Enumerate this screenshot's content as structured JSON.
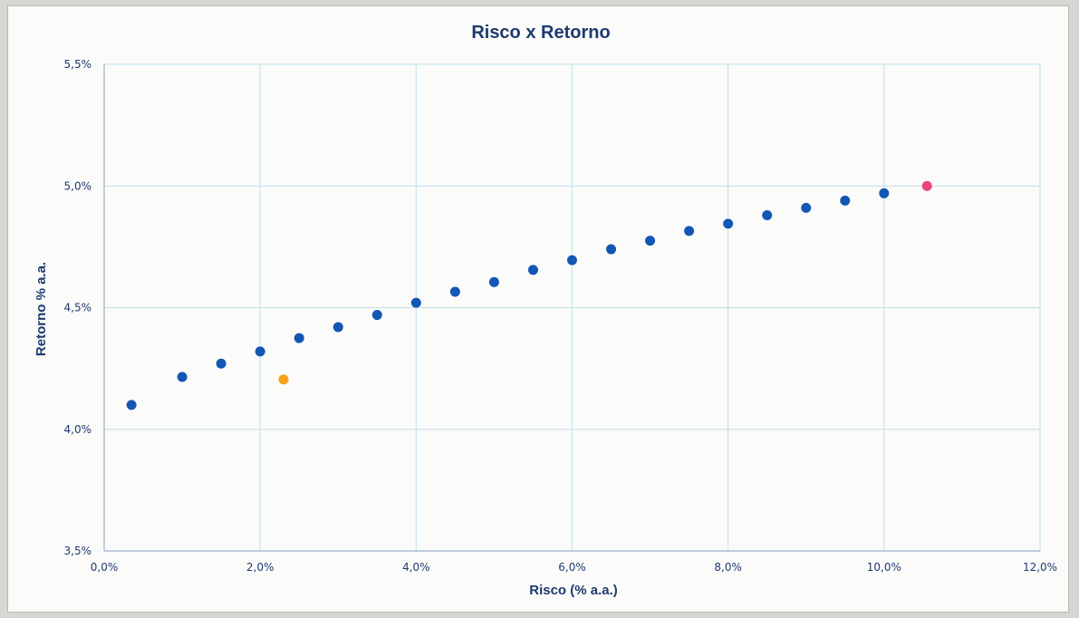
{
  "chart_data": {
    "type": "scatter",
    "title": "Risco x Retorno",
    "xlabel": "Risco (% a.a.)",
    "ylabel": "Retorno % a.a.",
    "xlim": [
      0,
      12
    ],
    "ylim": [
      3.5,
      5.5
    ],
    "x_ticks": [
      "0,0%",
      "2,0%",
      "4,0%",
      "6,0%",
      "8,0%",
      "10,0%",
      "12,0%"
    ],
    "y_ticks": [
      "3,5%",
      "4,0%",
      "4,5%",
      "5,0%",
      "5,5%"
    ],
    "grid": true,
    "series": [
      {
        "color": "#1456b4",
        "points": [
          [
            0.35,
            4.1
          ],
          [
            1.0,
            4.215
          ],
          [
            1.5,
            4.27
          ],
          [
            2.0,
            4.32
          ],
          [
            2.5,
            4.375
          ],
          [
            3.0,
            4.42
          ],
          [
            3.5,
            4.47
          ],
          [
            4.0,
            4.52
          ],
          [
            4.5,
            4.565
          ],
          [
            5.0,
            4.605
          ],
          [
            5.5,
            4.655
          ],
          [
            6.0,
            4.695
          ],
          [
            6.5,
            4.74
          ],
          [
            7.0,
            4.775
          ],
          [
            7.5,
            4.815
          ],
          [
            8.0,
            4.845
          ],
          [
            8.5,
            4.88
          ],
          [
            9.0,
            4.91
          ],
          [
            9.5,
            4.94
          ],
          [
            10.0,
            4.97
          ]
        ]
      },
      {
        "color": "#f5a31a",
        "points": [
          [
            2.3,
            4.205
          ]
        ]
      },
      {
        "color": "#e8457e",
        "points": [
          [
            10.55,
            5.0
          ]
        ]
      }
    ]
  }
}
